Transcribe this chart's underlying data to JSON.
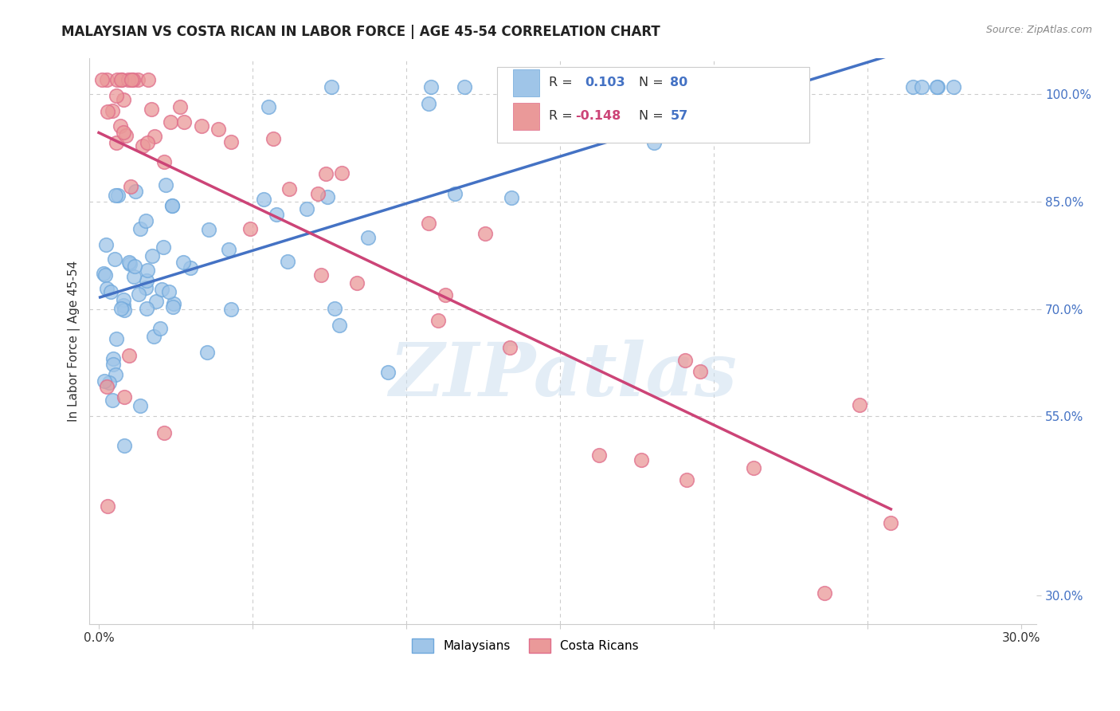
{
  "title": "MALAYSIAN VS COSTA RICAN IN LABOR FORCE | AGE 45-54 CORRELATION CHART",
  "source": "Source: ZipAtlas.com",
  "ylabel": "In Labor Force | Age 45-54",
  "blue_color": "#9fc5e8",
  "blue_edge_color": "#6fa8dc",
  "pink_color": "#ea9999",
  "pink_edge_color": "#e06c8a",
  "blue_line_color": "#4472c4",
  "pink_line_color": "#cc4477",
  "R_blue": 0.103,
  "N_blue": 80,
  "R_pink": -0.148,
  "N_pink": 57,
  "watermark": "ZIPatlas",
  "background_color": "#ffffff",
  "grid_color": "#cccccc",
  "ytick_color": "#4472c4",
  "legend_R_color": "#333333",
  "legend_N_color": "#4472c4",
  "legend_val_color": "#4472c4",
  "legend_neg_color": "#cc4477"
}
